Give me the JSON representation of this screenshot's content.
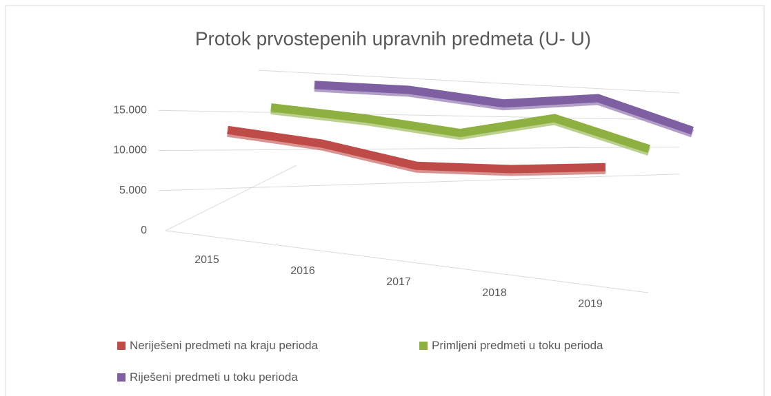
{
  "chart_data": {
    "type": "line3d",
    "title": "Protok prvostepenih upravnih predmeta (U- U)",
    "categories": [
      "2015",
      "2016",
      "2017",
      "2018",
      "2019"
    ],
    "series": [
      {
        "name": "Neriješeni predmeti na kraju perioda",
        "color": "#be4b48",
        "values": [
          12500,
          11000,
          8500,
          8200,
          8500
        ]
      },
      {
        "name": "Primljeni predmeti u toku perioda",
        "color": "#8db040",
        "values": [
          14000,
          12800,
          11200,
          13000,
          9500
        ]
      },
      {
        "name": "Riješeni predmeti u toku perioda",
        "color": "#7e5fa2",
        "values": [
          15500,
          15000,
          13500,
          14200,
          10500
        ]
      }
    ],
    "ylim": [
      0,
      20000
    ],
    "yticks": [
      0,
      {
        "value": 5000,
        "label": "5.000"
      },
      {
        "value": 10000,
        "label": "10.000"
      },
      {
        "value": 15000,
        "label": "15.000"
      }
    ],
    "grid": true
  }
}
